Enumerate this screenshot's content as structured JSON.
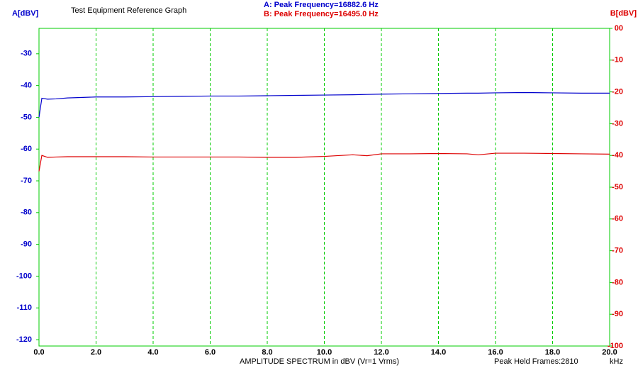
{
  "chart_data": {
    "type": "line",
    "title": "Test Equipment Reference Graph",
    "annotations": [
      "A: Peak Frequency=16882.6 Hz",
      "B: Peak Frequency=16495.0 Hz",
      "Peak Held Frames:2810"
    ],
    "x_label": "AMPLITUDE SPECTRUM in dBV (Vr=1 Vrms)",
    "x_unit": "kHz",
    "y_label": "A[dBV]",
    "y2_label": "B[dBV]",
    "x": [
      0.0,
      0.1,
      0.3,
      0.6,
      1.0,
      2.0,
      3.0,
      4.0,
      5.0,
      6.0,
      7.0,
      8.0,
      9.0,
      10.0,
      11.0,
      11.5,
      12.0,
      13.0,
      14.0,
      15.0,
      15.4,
      16.0,
      17.0,
      18.0,
      19.0,
      20.0
    ],
    "series": [
      {
        "name": "A",
        "color": "#0000cc",
        "values": [
          -50.0,
          -44.0,
          -44.3,
          -44.2,
          -43.9,
          -43.6,
          -43.6,
          -43.5,
          -43.4,
          -43.3,
          -43.3,
          -43.2,
          -43.1,
          -43.0,
          -42.9,
          -42.8,
          -42.7,
          -42.6,
          -42.5,
          -42.4,
          -42.4,
          -42.3,
          -42.2,
          -42.3,
          -42.4,
          -42.4
        ]
      },
      {
        "name": "B",
        "color": "#dd0000",
        "axis": "y2",
        "values": [
          -45.0,
          -40.0,
          -40.6,
          -40.5,
          -40.4,
          -40.4,
          -40.4,
          -40.5,
          -40.5,
          -40.5,
          -40.5,
          -40.6,
          -40.6,
          -40.3,
          -39.8,
          -40.1,
          -39.5,
          -39.5,
          -39.4,
          -39.5,
          -39.8,
          -39.3,
          -39.3,
          -39.4,
          -39.5,
          -39.6
        ]
      }
    ],
    "xlim": [
      0,
      20
    ],
    "xticks": [
      {
        "value": 0,
        "label": "0.0"
      },
      {
        "value": 2,
        "label": "2.0"
      },
      {
        "value": 4,
        "label": "4.0"
      },
      {
        "value": 6,
        "label": "6.0"
      },
      {
        "value": 8,
        "label": "8.0"
      },
      {
        "value": 10,
        "label": "10.0"
      },
      {
        "value": 12,
        "label": "12.0"
      },
      {
        "value": 14,
        "label": "14.0"
      },
      {
        "value": 16,
        "label": "16.0"
      },
      {
        "value": 18,
        "label": "18.0"
      },
      {
        "value": 20,
        "label": "20.0"
      }
    ],
    "ylim": [
      -122,
      -22
    ],
    "yticks": [
      -30,
      -40,
      -50,
      -60,
      -70,
      -80,
      -90,
      -100,
      -110,
      -120
    ],
    "y2lim": [
      -100,
      0
    ],
    "y2ticks": [
      {
        "value": 0,
        "label": "00"
      },
      -10,
      -20,
      -30,
      -40,
      -50,
      -60,
      -70,
      -80,
      -90,
      -100
    ],
    "grid": true,
    "grid_color": "#00cc00"
  }
}
